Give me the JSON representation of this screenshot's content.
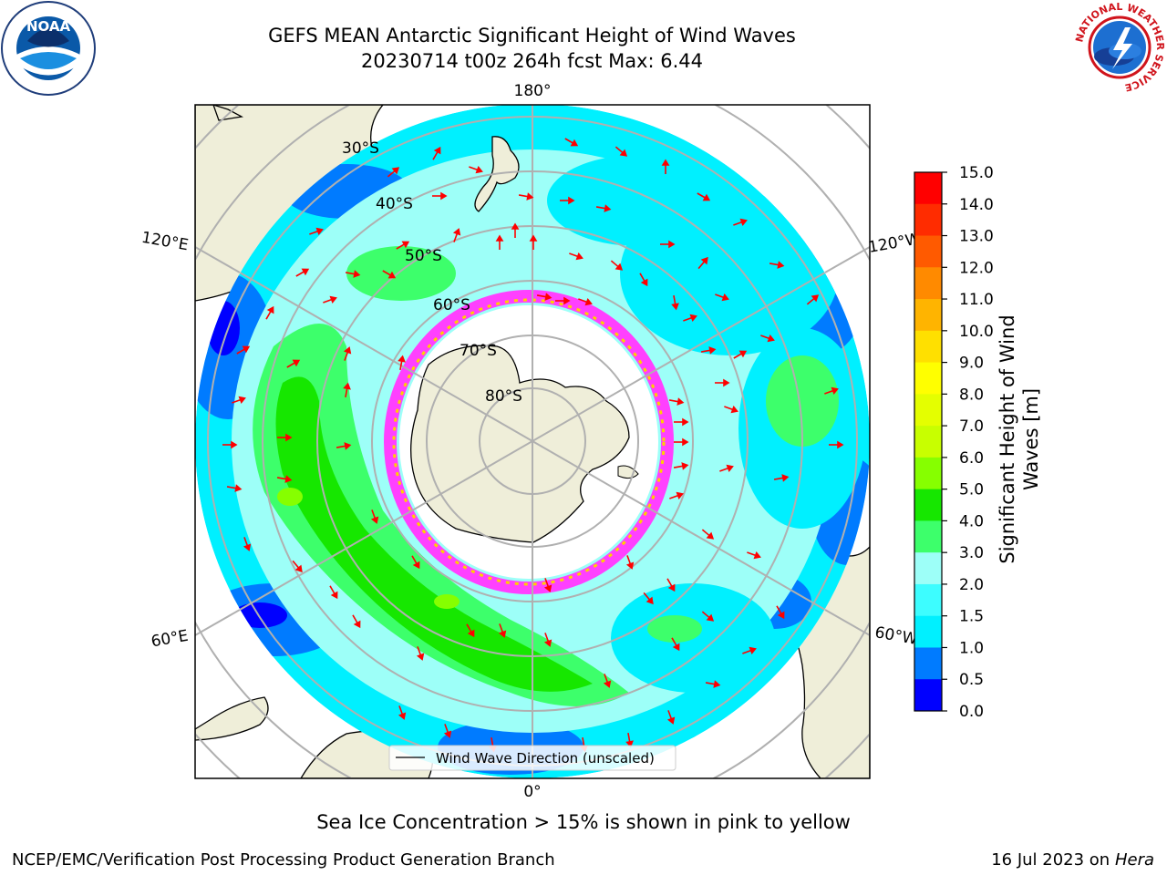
{
  "title": {
    "line1": "GEFS MEAN Antarctic Significant Height of Wind Waves",
    "line2": "20230714 t00z 264h fcst   Max: 6.44"
  },
  "map": {
    "projection": "south-polar-stereographic",
    "longitude_labels": {
      "top": "180°",
      "bottom": "0°",
      "left_upper": "120°E",
      "left_lower": "60°E",
      "right_upper": "120°W",
      "right_lower": "60°W"
    },
    "latitude_labels": [
      "30°S",
      "40°S",
      "50°S",
      "60°S",
      "70°S",
      "80°S"
    ],
    "legend_label": "Wind Wave Direction (unscaled)",
    "colors": {
      "land": "#efeed9",
      "ocean_low": "#00f0ff",
      "ocean_mid": "#9dfff8",
      "ocean_high": "#3dff6b",
      "ocean_peak": "#16e700",
      "ocean_deep": "#007bff",
      "ice_edge": "#ff40ff",
      "arrow": "#ff0000",
      "grid": "#b0b0b0"
    }
  },
  "colorbar": {
    "label_line1": "Significant Height of Wind",
    "label_line2": "Waves [m]",
    "ticks": [
      "15.0",
      "14.0",
      "13.0",
      "12.0",
      "11.0",
      "10.0",
      "9.0",
      "8.0",
      "7.0",
      "6.0",
      "5.0",
      "4.0",
      "3.0",
      "2.0",
      "1.5",
      "1.0",
      "0.5",
      "0.0"
    ],
    "colors": [
      "#ff0000",
      "#ff2c00",
      "#ff5a00",
      "#ff8a00",
      "#ffb400",
      "#ffe000",
      "#ffff00",
      "#e4ff00",
      "#c8ff00",
      "#86ff00",
      "#16e700",
      "#3dff6b",
      "#9dfff8",
      "#3dfdff",
      "#00f0ff",
      "#007bff",
      "#0000ff"
    ]
  },
  "notes": {
    "sea_ice": "Sea Ice Concentration > 15% is shown in pink to yellow"
  },
  "footer": {
    "left": "NCEP/EMC/Verification Post Processing Product Generation Branch",
    "right_date": "16 Jul 2023 on ",
    "right_host": "Hera"
  },
  "logos": {
    "noaa": "NOAA",
    "nws_text": "NATIONAL WEATHER SERVICE"
  }
}
